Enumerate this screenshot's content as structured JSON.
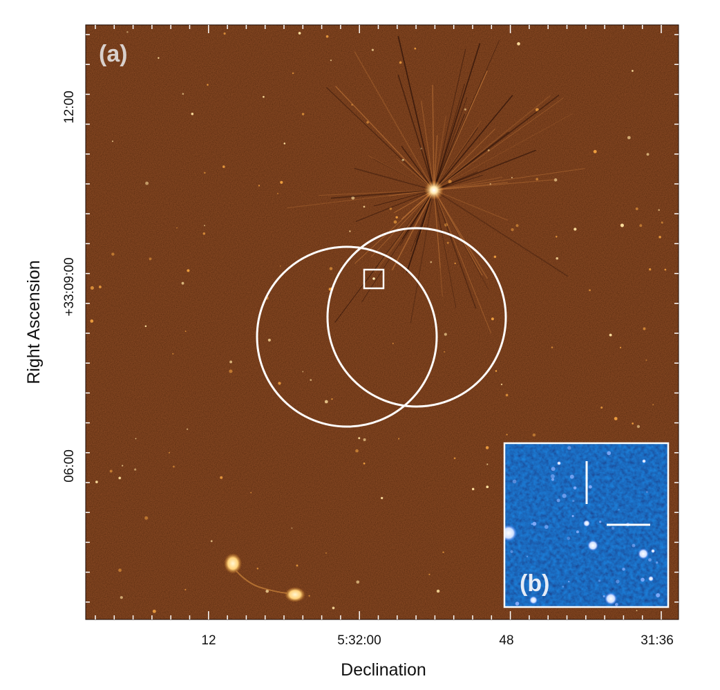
{
  "panel_a_label": "(a)",
  "panel_b_label": "(b)",
  "x_axis": {
    "title": "Declination",
    "ticks": [
      "12",
      "5:32:00",
      "48",
      "31:36"
    ]
  },
  "y_axis": {
    "title": "Right Ascension",
    "ticks": [
      "12:00",
      "+33:09:00",
      "06:00"
    ]
  },
  "colors": {
    "map_background": "#4a1708",
    "inset_background": "#0a2aa0",
    "overlay": "#ffffff"
  }
}
